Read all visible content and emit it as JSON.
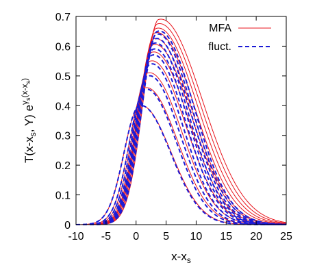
{
  "chart_data": {
    "type": "line",
    "title": "",
    "xlabel": "x-x",
    "xlabel_sub": "s",
    "ylabel": "T(x-x",
    "ylabel_parts": [
      "T(x-x",
      "s",
      ", Y) e",
      "γ",
      "s",
      "(x-x",
      "s",
      ")"
    ],
    "xlim": [
      -10,
      25
    ],
    "ylim": [
      0,
      0.7
    ],
    "x_ticks": [
      -10,
      -5,
      0,
      5,
      10,
      15,
      20,
      25
    ],
    "y_ticks": [
      0,
      0.1,
      0.2,
      0.3,
      0.4,
      0.5,
      0.6,
      0.7
    ],
    "x_tick_labels": [
      "-10",
      "-5",
      "0",
      "5",
      "10",
      "15",
      "20",
      "25"
    ],
    "y_tick_labels": [
      "0",
      "0.1",
      "0.2",
      "0.3",
      "0.4",
      "0.5",
      "0.6",
      "0.7"
    ],
    "legend_position": "top-right",
    "grid": false,
    "series": [
      {
        "name": "MFA",
        "color": "#e8141c",
        "dash": "solid",
        "curves": [
          {
            "peak_x": 0.6,
            "peak_y": 0.4,
            "width": 5.0
          },
          {
            "peak_x": 1.5,
            "peak_y": 0.46,
            "width": 5.2
          },
          {
            "peak_x": 2.0,
            "peak_y": 0.51,
            "width": 5.4
          },
          {
            "peak_x": 2.4,
            "peak_y": 0.55,
            "width": 5.6
          },
          {
            "peak_x": 2.7,
            "peak_y": 0.58,
            "width": 5.8
          },
          {
            "peak_x": 2.9,
            "peak_y": 0.605,
            "width": 6.0
          },
          {
            "peak_x": 3.0,
            "peak_y": 0.625,
            "width": 6.1
          },
          {
            "peak_x": 3.2,
            "peak_y": 0.645,
            "width": 6.3
          },
          {
            "peak_x": 3.4,
            "peak_y": 0.66,
            "width": 6.5
          },
          {
            "peak_x": 3.6,
            "peak_y": 0.675,
            "width": 6.7
          },
          {
            "peak_x": 3.8,
            "peak_y": 0.69,
            "width": 6.9
          }
        ]
      },
      {
        "name": "fluct.",
        "color": "#1b1bd6",
        "dash": "dashed",
        "curves": [
          {
            "peak_x": 0.6,
            "peak_y": 0.4,
            "width": 4.9
          },
          {
            "peak_x": 1.5,
            "peak_y": 0.455,
            "width": 5.0
          },
          {
            "peak_x": 2.0,
            "peak_y": 0.5,
            "width": 5.1
          },
          {
            "peak_x": 2.4,
            "peak_y": 0.54,
            "width": 5.2
          },
          {
            "peak_x": 2.7,
            "peak_y": 0.57,
            "width": 5.3
          },
          {
            "peak_x": 2.9,
            "peak_y": 0.59,
            "width": 5.4
          },
          {
            "peak_x": 3.0,
            "peak_y": 0.61,
            "width": 5.5
          },
          {
            "peak_x": 3.2,
            "peak_y": 0.625,
            "width": 5.6
          },
          {
            "peak_x": 3.4,
            "peak_y": 0.64,
            "width": 5.7
          },
          {
            "peak_x": 3.6,
            "peak_y": 0.65,
            "width": 5.8
          }
        ]
      }
    ]
  }
}
